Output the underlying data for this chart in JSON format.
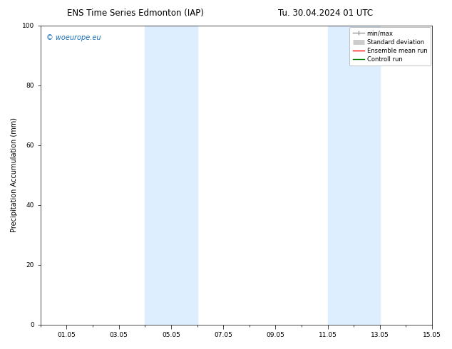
{
  "title_left": "ENS Time Series Edmonton (IAP)",
  "title_right": "Tu. 30.04.2024 01 UTC",
  "ylabel": "Precipitation Accumulation (mm)",
  "ylim": [
    0,
    100
  ],
  "yticks": [
    0,
    20,
    40,
    60,
    80,
    100
  ],
  "xmax_days": 15,
  "xtick_labels": [
    "01.05",
    "03.05",
    "05.05",
    "07.05",
    "09.05",
    "11.05",
    "13.05",
    "15.05"
  ],
  "xtick_positions": [
    1,
    3,
    5,
    7,
    9,
    11,
    13,
    15
  ],
  "shaded_bands": [
    {
      "x_start": 4.0,
      "x_end": 6.0
    },
    {
      "x_start": 11.0,
      "x_end": 13.0
    }
  ],
  "shade_color": "#ddeeff",
  "background_color": "#ffffff",
  "watermark_text": "© woeurope.eu",
  "watermark_color": "#1a6fba",
  "title_fontsize": 8.5,
  "axis_label_fontsize": 7,
  "tick_fontsize": 6.5,
  "legend_fontsize": 6,
  "watermark_fontsize": 7
}
